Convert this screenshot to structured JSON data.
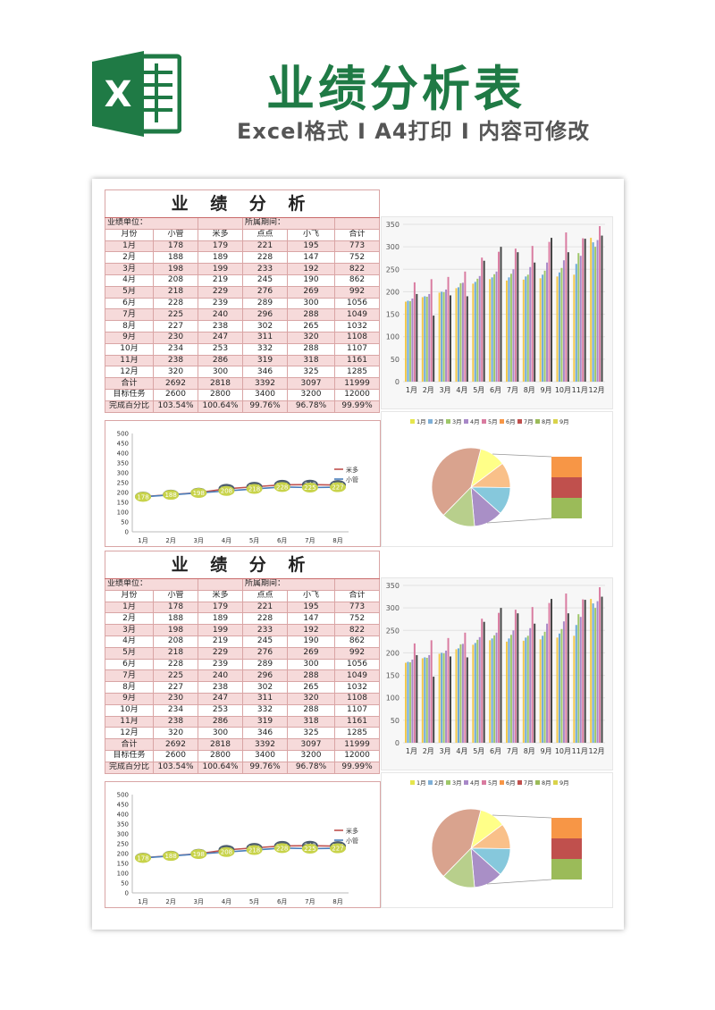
{
  "header": {
    "title": "业绩分析表",
    "subtitle": "Excel格式 I A4打印 I 内容可修改",
    "logo_letter": "X"
  },
  "sheet": {
    "title": "业 绩 分 析",
    "unit_label": "业绩单位：",
    "period_label": "所属期间：",
    "columns": [
      "月份",
      "小管",
      "米多",
      "点点",
      "小飞",
      "合计"
    ],
    "rows": [
      [
        "1月",
        "178",
        "179",
        "221",
        "195",
        "773"
      ],
      [
        "2月",
        "188",
        "189",
        "228",
        "147",
        "752"
      ],
      [
        "3月",
        "198",
        "199",
        "233",
        "192",
        "822"
      ],
      [
        "4月",
        "208",
        "219",
        "245",
        "190",
        "862"
      ],
      [
        "5月",
        "218",
        "229",
        "276",
        "269",
        "992"
      ],
      [
        "6月",
        "228",
        "239",
        "289",
        "300",
        "1056"
      ],
      [
        "7月",
        "225",
        "240",
        "296",
        "288",
        "1049"
      ],
      [
        "8月",
        "227",
        "238",
        "302",
        "265",
        "1032"
      ],
      [
        "9月",
        "230",
        "247",
        "311",
        "320",
        "1108"
      ],
      [
        "10月",
        "234",
        "253",
        "332",
        "288",
        "1107"
      ],
      [
        "11月",
        "238",
        "286",
        "319",
        "318",
        "1161"
      ],
      [
        "12月",
        "320",
        "300",
        "346",
        "325",
        "1285"
      ]
    ],
    "total_row": [
      "合计",
      "2692",
      "2818",
      "3392",
      "3097",
      "11999"
    ],
    "target_row": [
      "目标任务",
      "2600",
      "2800",
      "3400",
      "3200",
      "12000"
    ],
    "percent_row": [
      "完成百分比",
      "103.54%",
      "100.64%",
      "99.76%",
      "96.78%",
      "99.99%"
    ]
  },
  "chart_data": [
    {
      "type": "bar",
      "categories": [
        "1月",
        "2月",
        "3月",
        "4月",
        "5月",
        "6月",
        "7月",
        "8月",
        "9月",
        "10月",
        "11月",
        "12月"
      ],
      "series": [
        {
          "values": [
            178,
            188,
            198,
            208,
            218,
            228,
            225,
            227,
            230,
            234,
            238,
            320
          ],
          "color": "#f2c84b"
        },
        {
          "values": [
            180,
            190,
            200,
            210,
            222,
            232,
            232,
            234,
            238,
            243,
            262,
            310
          ],
          "color": "#6aa9d8"
        },
        {
          "values": [
            179,
            189,
            199,
            219,
            229,
            239,
            240,
            238,
            247,
            253,
            286,
            300
          ],
          "color": "#9fc86a"
        },
        {
          "values": [
            185,
            195,
            205,
            220,
            235,
            245,
            250,
            255,
            265,
            270,
            280,
            315
          ],
          "color": "#a888c8"
        },
        {
          "values": [
            221,
            228,
            233,
            245,
            276,
            289,
            296,
            302,
            311,
            332,
            319,
            346
          ],
          "color": "#d97ba0"
        },
        {
          "values": [
            195,
            147,
            192,
            190,
            269,
            300,
            288,
            265,
            320,
            288,
            318,
            325
          ],
          "color": "#444444"
        }
      ],
      "ylim": [
        0,
        350
      ],
      "yticks": [
        0,
        50,
        100,
        150,
        200,
        250,
        300,
        350
      ]
    },
    {
      "type": "line",
      "categories": [
        "1月",
        "2月",
        "3月",
        "4月",
        "5月",
        "6月",
        "7月",
        "8月"
      ],
      "series": [
        {
          "name": "米多",
          "values": [
            179,
            189,
            199,
            219,
            229,
            239,
            240,
            238
          ],
          "color": "#c0504d",
          "label_bg": "#4d5d6e",
          "label_color": "#ffffff"
        },
        {
          "name": "小管",
          "values": [
            178,
            188,
            198,
            208,
            218,
            228,
            225,
            227
          ],
          "color": "#4a7ebb",
          "label_bg": "#c8d34a",
          "label_color": "#ffffff"
        }
      ],
      "ylim": [
        0,
        500
      ],
      "yticks": [
        0,
        50,
        100,
        150,
        200,
        250,
        300,
        350,
        400,
        450,
        500
      ]
    },
    {
      "type": "pie",
      "legend": [
        "1月",
        "2月",
        "3月",
        "4月",
        "5月",
        "6月",
        "7月",
        "8月",
        "9月"
      ],
      "legend_colors": [
        "#e6e64d",
        "#7fb0d8",
        "#9fc86a",
        "#a888c8",
        "#d97ba0",
        "#f79646",
        "#c0504d",
        "#9bbb59",
        "#d9d34a"
      ],
      "main_values": [
        773,
        752,
        822,
        862,
        992,
        3000
      ],
      "main_colors": [
        "#ffff88",
        "#f9c089",
        "#86c8dc",
        "#a98fc6",
        "#b8cf8c",
        "#d9a38e"
      ],
      "secondary_colors": [
        "#f79646",
        "#c0504d",
        "#9bbb59"
      ]
    }
  ]
}
